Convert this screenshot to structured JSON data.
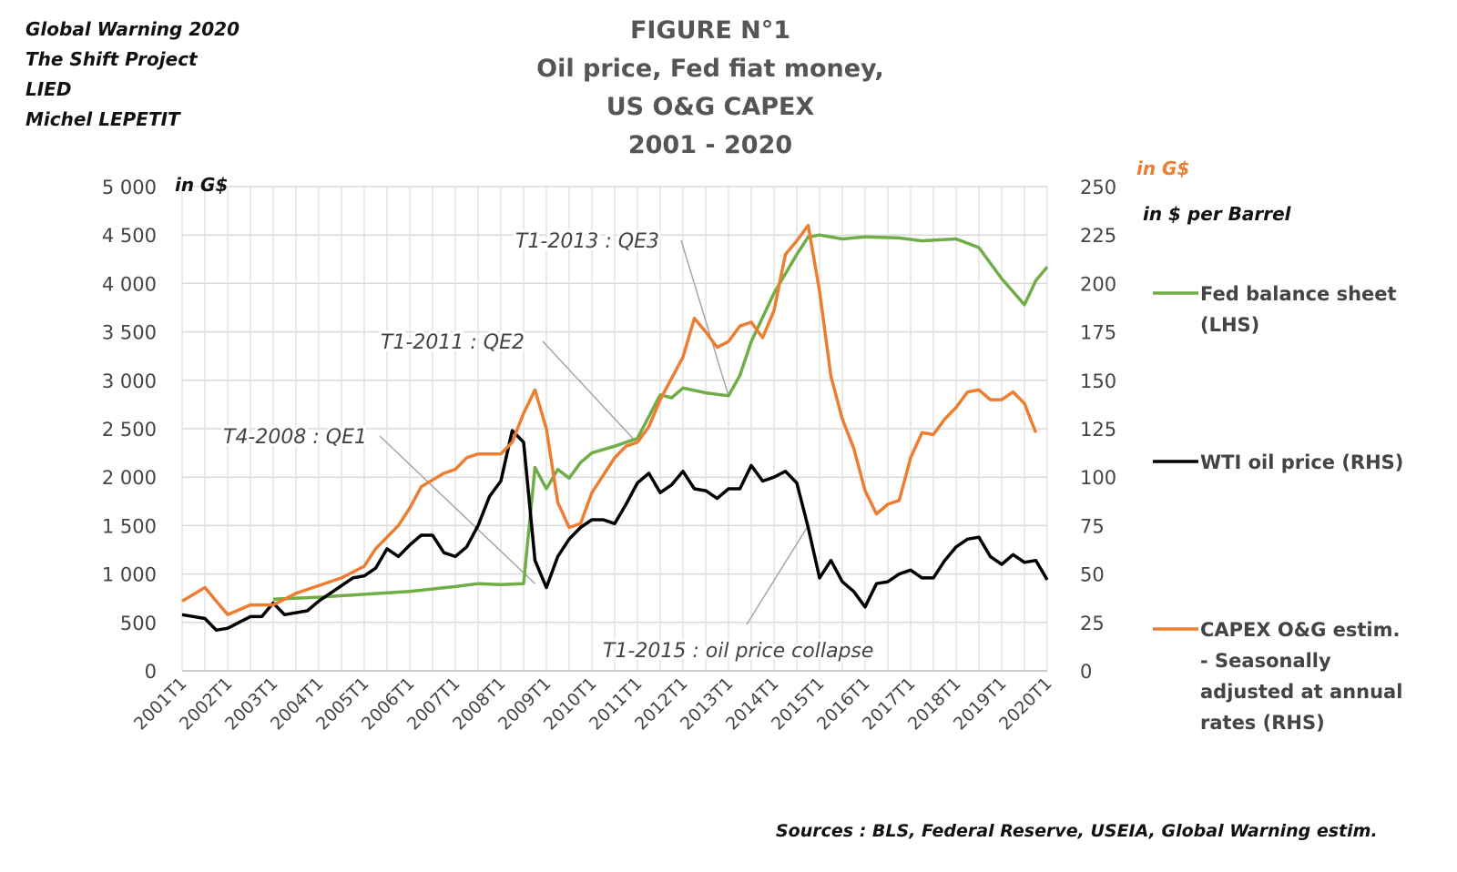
{
  "credits": [
    "Global Warning 2020",
    "The Shift Project",
    "LIED",
    "Michel LEPETIT"
  ],
  "title_lines": [
    "FIGURE N°1",
    "Oil price, Fed fiat money,",
    "US O&G CAPEX",
    "2001 - 2020"
  ],
  "source": "Sources : BLS, Federal Reserve, USEIA, Global Warning estim.",
  "chart_data": {
    "type": "line",
    "title": "FIGURE N°1 Oil price, Fed fiat money, US O&G CAPEX 2001 - 2020",
    "left_axis": {
      "unit_label": "in G$",
      "ticks": [
        "0",
        "500",
        "1 000",
        "1 500",
        "2 000",
        "2 500",
        "3 000",
        "3 500",
        "4 000",
        "4 500",
        "5 000"
      ],
      "ylim": [
        0,
        5000
      ]
    },
    "right_axis": {
      "unit_label_capex": "in G$",
      "unit_label_oil": "in $ per Barrel",
      "ticks": [
        "0",
        "25",
        "50",
        "75",
        "100",
        "125",
        "150",
        "175",
        "200",
        "225",
        "250"
      ],
      "ylim": [
        0,
        250
      ]
    },
    "x_ticks": [
      "2001T1",
      "2002T1",
      "2003T1",
      "2004T1",
      "2005T1",
      "2006T1",
      "2007T1",
      "2008T1",
      "2009T1",
      "2010T1",
      "2011T1",
      "2012T1",
      "2013T1",
      "2014T1",
      "2015T1",
      "2016T1",
      "2017T1",
      "2018T1",
      "2019T1",
      "2020T1"
    ],
    "xlim": [
      2001.0,
      2020.0
    ],
    "grid": true,
    "legend_placement": "right",
    "series": [
      {
        "name": "Fed balance sheet (LHS)",
        "axis": "left",
        "color": "#70AD47",
        "points": [
          [
            2003.0,
            740
          ],
          [
            2004.0,
            760
          ],
          [
            2005.0,
            790
          ],
          [
            2006.0,
            820
          ],
          [
            2007.0,
            870
          ],
          [
            2007.5,
            900
          ],
          [
            2008.0,
            890
          ],
          [
            2008.5,
            900
          ],
          [
            2008.75,
            2100
          ],
          [
            2009.0,
            1880
          ],
          [
            2009.25,
            2080
          ],
          [
            2009.5,
            1990
          ],
          [
            2009.75,
            2150
          ],
          [
            2010.0,
            2250
          ],
          [
            2010.5,
            2320
          ],
          [
            2011.0,
            2400
          ],
          [
            2011.5,
            2850
          ],
          [
            2011.75,
            2820
          ],
          [
            2012.0,
            2920
          ],
          [
            2012.5,
            2870
          ],
          [
            2013.0,
            2840
          ],
          [
            2013.25,
            3050
          ],
          [
            2013.5,
            3400
          ],
          [
            2014.0,
            3900
          ],
          [
            2014.5,
            4300
          ],
          [
            2014.75,
            4480
          ],
          [
            2015.0,
            4500
          ],
          [
            2015.5,
            4460
          ],
          [
            2016.0,
            4480
          ],
          [
            2016.75,
            4470
          ],
          [
            2017.25,
            4440
          ],
          [
            2018.0,
            4460
          ],
          [
            2018.5,
            4370
          ],
          [
            2019.0,
            4050
          ],
          [
            2019.5,
            3780
          ],
          [
            2019.75,
            4030
          ],
          [
            2020.0,
            4170
          ]
        ]
      },
      {
        "name": "WTI oil price (RHS)",
        "axis": "right",
        "color": "#000000",
        "points": [
          [
            2001.0,
            29
          ],
          [
            2001.5,
            27
          ],
          [
            2001.75,
            21
          ],
          [
            2002.0,
            22
          ],
          [
            2002.5,
            28
          ],
          [
            2002.75,
            28
          ],
          [
            2003.0,
            35
          ],
          [
            2003.25,
            29
          ],
          [
            2003.75,
            31
          ],
          [
            2004.0,
            36
          ],
          [
            2004.5,
            44
          ],
          [
            2004.75,
            48
          ],
          [
            2005.0,
            49
          ],
          [
            2005.25,
            53
          ],
          [
            2005.5,
            63
          ],
          [
            2005.75,
            59
          ],
          [
            2006.0,
            65
          ],
          [
            2006.25,
            70
          ],
          [
            2006.5,
            70
          ],
          [
            2006.75,
            61
          ],
          [
            2007.0,
            59
          ],
          [
            2007.25,
            64
          ],
          [
            2007.5,
            75
          ],
          [
            2007.75,
            90
          ],
          [
            2008.0,
            98
          ],
          [
            2008.25,
            124
          ],
          [
            2008.5,
            118
          ],
          [
            2008.75,
            57
          ],
          [
            2009.0,
            43
          ],
          [
            2009.25,
            59
          ],
          [
            2009.5,
            68
          ],
          [
            2009.75,
            74
          ],
          [
            2010.0,
            78
          ],
          [
            2010.25,
            78
          ],
          [
            2010.5,
            76
          ],
          [
            2010.75,
            86
          ],
          [
            2011.0,
            97
          ],
          [
            2011.25,
            102
          ],
          [
            2011.5,
            92
          ],
          [
            2011.75,
            96
          ],
          [
            2012.0,
            103
          ],
          [
            2012.25,
            94
          ],
          [
            2012.5,
            93
          ],
          [
            2012.75,
            89
          ],
          [
            2013.0,
            94
          ],
          [
            2013.25,
            94
          ],
          [
            2013.5,
            106
          ],
          [
            2013.75,
            98
          ],
          [
            2014.0,
            100
          ],
          [
            2014.25,
            103
          ],
          [
            2014.5,
            97
          ],
          [
            2014.75,
            74
          ],
          [
            2015.0,
            48
          ],
          [
            2015.25,
            57
          ],
          [
            2015.5,
            46
          ],
          [
            2015.75,
            41
          ],
          [
            2016.0,
            33
          ],
          [
            2016.25,
            45
          ],
          [
            2016.5,
            46
          ],
          [
            2016.75,
            50
          ],
          [
            2017.0,
            52
          ],
          [
            2017.25,
            48
          ],
          [
            2017.5,
            48
          ],
          [
            2017.75,
            57
          ],
          [
            2018.0,
            64
          ],
          [
            2018.25,
            68
          ],
          [
            2018.5,
            69
          ],
          [
            2018.75,
            59
          ],
          [
            2019.0,
            55
          ],
          [
            2019.25,
            60
          ],
          [
            2019.5,
            56
          ],
          [
            2019.75,
            57
          ],
          [
            2020.0,
            47
          ]
        ]
      },
      {
        "name": "CAPEX O&G estim. - Seasonally adjusted at annual rates (RHS)",
        "axis": "right",
        "color": "#ED7D31",
        "points": [
          [
            2001.0,
            36
          ],
          [
            2001.5,
            43
          ],
          [
            2002.0,
            29
          ],
          [
            2002.5,
            34
          ],
          [
            2003.0,
            34
          ],
          [
            2003.5,
            40
          ],
          [
            2004.0,
            44
          ],
          [
            2004.5,
            48
          ],
          [
            2005.0,
            54
          ],
          [
            2005.25,
            63
          ],
          [
            2005.75,
            75
          ],
          [
            2006.0,
            84
          ],
          [
            2006.25,
            95
          ],
          [
            2006.75,
            102
          ],
          [
            2007.0,
            104
          ],
          [
            2007.25,
            110
          ],
          [
            2007.5,
            112
          ],
          [
            2008.0,
            112
          ],
          [
            2008.25,
            118
          ],
          [
            2008.5,
            133
          ],
          [
            2008.75,
            145
          ],
          [
            2009.0,
            125
          ],
          [
            2009.25,
            87
          ],
          [
            2009.5,
            74
          ],
          [
            2009.75,
            76
          ],
          [
            2010.0,
            92
          ],
          [
            2010.5,
            110
          ],
          [
            2010.75,
            116
          ],
          [
            2011.0,
            118
          ],
          [
            2011.25,
            126
          ],
          [
            2011.5,
            140
          ],
          [
            2012.0,
            162
          ],
          [
            2012.25,
            182
          ],
          [
            2012.5,
            175
          ],
          [
            2012.75,
            167
          ],
          [
            2013.0,
            170
          ],
          [
            2013.25,
            178
          ],
          [
            2013.5,
            180
          ],
          [
            2013.75,
            172
          ],
          [
            2014.0,
            186
          ],
          [
            2014.25,
            215
          ],
          [
            2014.5,
            222
          ],
          [
            2014.75,
            230
          ],
          [
            2015.0,
            196
          ],
          [
            2015.25,
            152
          ],
          [
            2015.5,
            130
          ],
          [
            2015.75,
            115
          ],
          [
            2016.0,
            93
          ],
          [
            2016.25,
            81
          ],
          [
            2016.5,
            86
          ],
          [
            2016.75,
            88
          ],
          [
            2017.0,
            110
          ],
          [
            2017.25,
            123
          ],
          [
            2017.5,
            122
          ],
          [
            2017.75,
            130
          ],
          [
            2018.0,
            136
          ],
          [
            2018.25,
            144
          ],
          [
            2018.5,
            145
          ],
          [
            2018.75,
            140
          ],
          [
            2019.0,
            140
          ],
          [
            2019.25,
            144
          ],
          [
            2019.5,
            138
          ],
          [
            2019.75,
            123
          ]
        ]
      }
    ],
    "legend": [
      "Fed balance sheet (LHS)",
      "WTI oil price (RHS)",
      "CAPEX O&G estim. - Seasonally adjusted at annual rates (RHS)"
    ],
    "annotations": [
      {
        "text": "T4-2008 : QE1",
        "x": 2008.75,
        "axis": "left",
        "y": 900
      },
      {
        "text": "T1-2011 : QE2",
        "x": 2011.0,
        "axis": "left",
        "y": 2350
      },
      {
        "text": "T1-2013 : QE3",
        "x": 2013.0,
        "axis": "left",
        "y": 2840
      },
      {
        "text": "T1-2015 : oil price collapse",
        "x": 2014.75,
        "axis": "right",
        "y": 75
      }
    ]
  }
}
